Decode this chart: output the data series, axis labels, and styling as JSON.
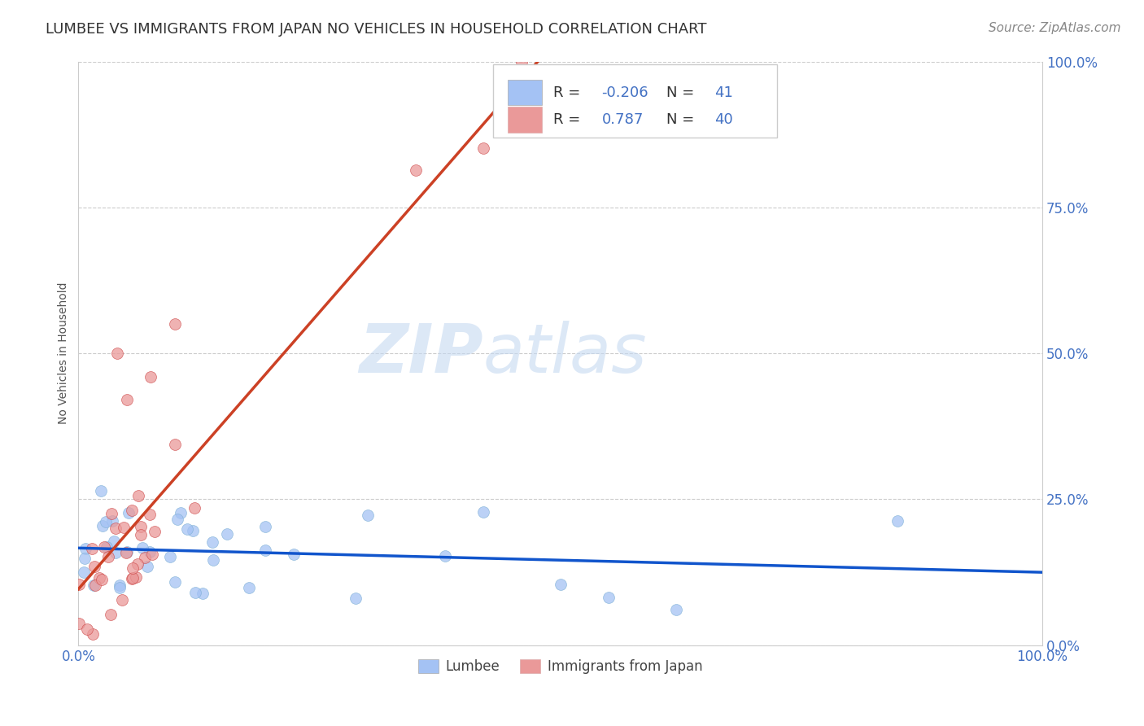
{
  "title": "LUMBEE VS IMMIGRANTS FROM JAPAN NO VEHICLES IN HOUSEHOLD CORRELATION CHART",
  "source_text": "Source: ZipAtlas.com",
  "ylabel": "No Vehicles in Household",
  "xlim": [
    0.0,
    1.0
  ],
  "ylim": [
    0.0,
    1.0
  ],
  "ytick_labels": [
    "0.0%",
    "25.0%",
    "50.0%",
    "75.0%",
    "100.0%"
  ],
  "ytick_positions": [
    0.0,
    0.25,
    0.5,
    0.75,
    1.0
  ],
  "background_color": "#ffffff",
  "watermark_zip": "ZIP",
  "watermark_atlas": "atlas",
  "lumbee_R": -0.206,
  "lumbee_N": 41,
  "japan_R": 0.787,
  "japan_N": 40,
  "lumbee_color": "#a4c2f4",
  "japan_color": "#ea9999",
  "lumbee_line_color": "#1155cc",
  "japan_line_color": "#cc4125",
  "tick_color": "#4472c4",
  "legend_text_color": "#4472c4",
  "legend_label_color": "#333333",
  "title_fontsize": 13,
  "axis_label_fontsize": 10,
  "tick_fontsize": 12,
  "legend_fontsize": 13,
  "source_fontsize": 11
}
